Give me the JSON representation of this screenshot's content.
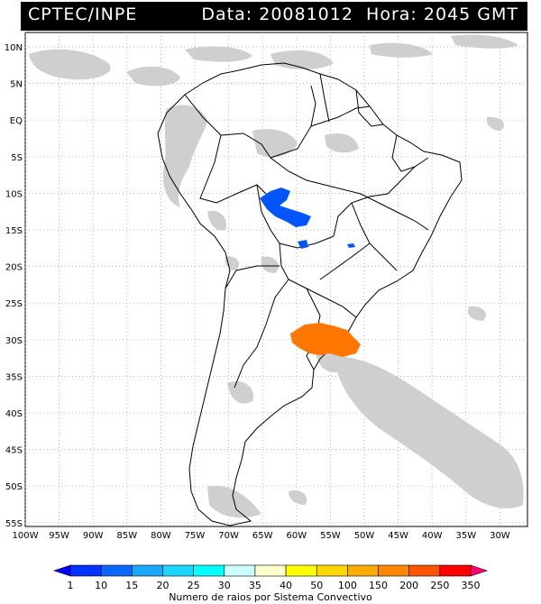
{
  "header": {
    "source": "CPTEC/INPE",
    "date_label": "Data:",
    "date": "20081012",
    "time_label": "Hora:",
    "time": "2045 GMT"
  },
  "lat_labels": [
    "10N",
    "5N",
    "EQ",
    "5S",
    "10S",
    "15S",
    "20S",
    "25S",
    "30S",
    "35S",
    "40S",
    "45S",
    "50S",
    "55S"
  ],
  "lon_labels": [
    "100W",
    "95W",
    "90W",
    "85W",
    "80W",
    "75W",
    "70W",
    "65W",
    "60W",
    "55W",
    "50W",
    "45W",
    "40W",
    "35W",
    "30W"
  ],
  "legend": {
    "ticks": [
      "1",
      "10",
      "15",
      "20",
      "25",
      "30",
      "35",
      "40",
      "50",
      "100",
      "150",
      "200",
      "250",
      "350"
    ],
    "colors": [
      "#0000ff",
      "#0033ff",
      "#0a66ff",
      "#1aa8ff",
      "#1ad6ff",
      "#00ffff",
      "#ccffff",
      "#ffffcc",
      "#ffff00",
      "#ffd700",
      "#ffaa00",
      "#ff8800",
      "#ff5500",
      "#ff0000",
      "#ff0077"
    ],
    "caption": "Numero de raios por Sistema Convectivo"
  },
  "systems": [
    {
      "name": "convective-system-bolivia",
      "color": "#0055ff"
    },
    {
      "name": "convective-system-paraguay",
      "color": "#0055ff"
    },
    {
      "name": "convective-system-brazil-south",
      "color": "#ff7700"
    }
  ]
}
